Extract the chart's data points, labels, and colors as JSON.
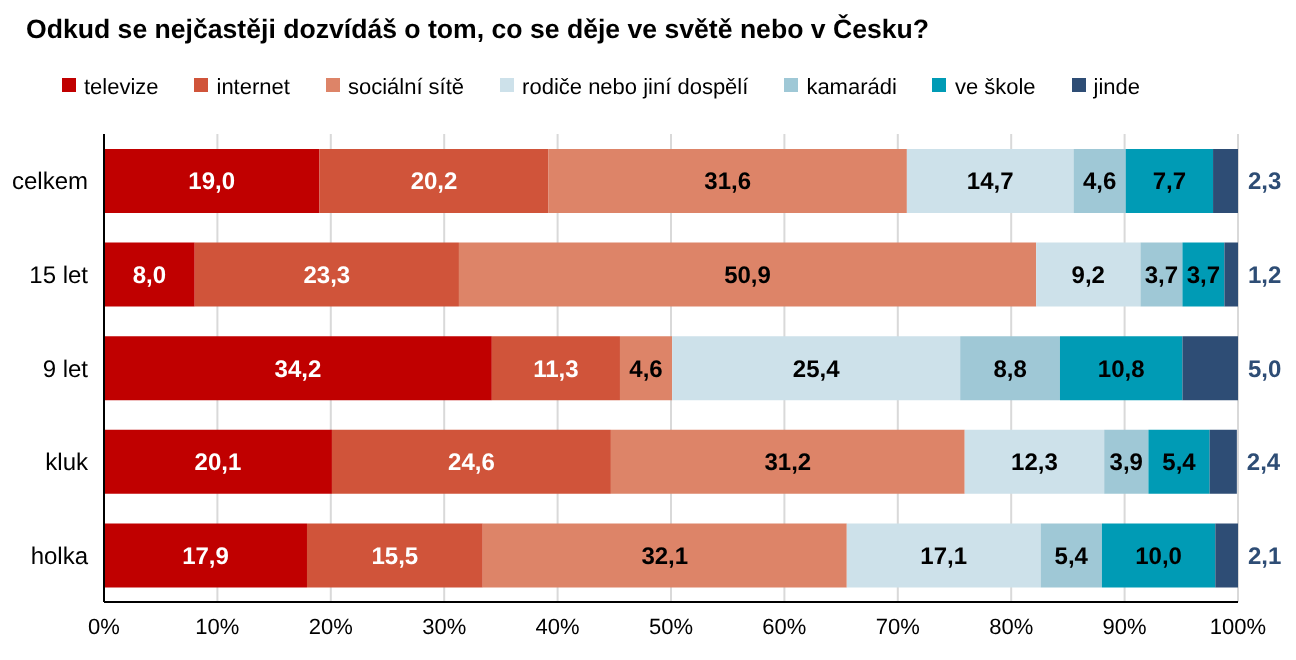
{
  "chart_data": {
    "type": "bar",
    "orientation": "horizontal",
    "stacked": true,
    "title": "Odkud se nejčastěji dozvídáš o tom, co se děje ve světě nebo v Česku?",
    "categories": [
      "celkem",
      "15 let",
      "9 let",
      "kluk",
      "holka"
    ],
    "series": [
      {
        "name": "televize",
        "color": "#c00000",
        "values": [
          19.0,
          8.0,
          34.2,
          20.1,
          17.9
        ],
        "value_labels": [
          "19,0",
          "8,0",
          "34,2",
          "20,1",
          "17,9"
        ]
      },
      {
        "name": "internet",
        "color": "#d0543a",
        "values": [
          20.2,
          23.3,
          11.3,
          24.6,
          15.5
        ],
        "value_labels": [
          "20,2",
          "23,3",
          "11,3",
          "24,6",
          "15,5"
        ]
      },
      {
        "name": "sociální sítě",
        "color": "#dd8468",
        "values": [
          31.6,
          50.9,
          4.6,
          31.2,
          32.1
        ],
        "value_labels": [
          "31,6",
          "50,9",
          "4,6",
          "31,2",
          "32,1"
        ]
      },
      {
        "name": "rodiče nebo jiní dospělí",
        "color": "#cde1ea",
        "values": [
          14.7,
          9.2,
          25.4,
          12.3,
          17.1
        ],
        "value_labels": [
          "14,7",
          "9,2",
          "25,4",
          "12,3",
          "17,1"
        ]
      },
      {
        "name": "kamarádi",
        "color": "#9fc8d6",
        "values": [
          4.6,
          3.7,
          8.8,
          3.9,
          5.4
        ],
        "value_labels": [
          "4,6",
          "3,7",
          "8,8",
          "3,9",
          "5,4"
        ]
      },
      {
        "name": "ve škole",
        "color": "#009bb5",
        "values": [
          7.7,
          3.7,
          10.8,
          5.4,
          10.0
        ],
        "value_labels": [
          "7,7",
          "3,7",
          "10,8",
          "5,4",
          "10,0"
        ]
      },
      {
        "name": "jinde",
        "color": "#2e4d75",
        "values": [
          2.3,
          1.2,
          5.0,
          2.4,
          2.1
        ],
        "value_labels": [
          "2,3",
          "1,2",
          "5,0",
          "2,4",
          "2,1"
        ]
      }
    ],
    "xlim": [
      0,
      100
    ],
    "xticks": [
      {
        "value": 0,
        "label": "0%"
      },
      {
        "value": 10,
        "label": "10%"
      },
      {
        "value": 20,
        "label": "20%"
      },
      {
        "value": 30,
        "label": "30%"
      },
      {
        "value": 40,
        "label": "40%"
      },
      {
        "value": 50,
        "label": "50%"
      },
      {
        "value": 60,
        "label": "60%"
      },
      {
        "value": 70,
        "label": "70%"
      },
      {
        "value": 80,
        "label": "80%"
      },
      {
        "value": 90,
        "label": "90%"
      },
      {
        "value": 100,
        "label": "100%"
      }
    ],
    "grid": "x",
    "legend": "top"
  }
}
